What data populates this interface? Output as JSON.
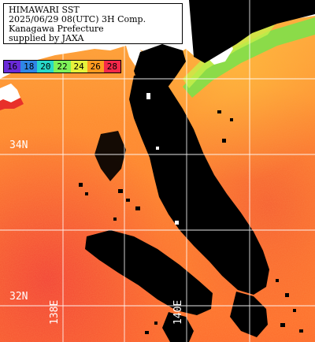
{
  "title": {
    "lines": [
      "HIMAWARI SST",
      "2025/06/29 08(UTC) 3H Comp.",
      "Kanagawa Prefecture",
      "supplied by JAXA"
    ]
  },
  "legend": {
    "items": [
      {
        "label": "16",
        "color": "#6a2bd9"
      },
      {
        "label": "18",
        "color": "#2f86e6"
      },
      {
        "label": "20",
        "color": "#27d9c8"
      },
      {
        "label": "22",
        "color": "#7ef25a"
      },
      {
        "label": "24",
        "color": "#e6f23b"
      },
      {
        "label": "26",
        "color": "#ff9a1f"
      },
      {
        "label": "28",
        "color": "#f5284a"
      }
    ]
  },
  "latitude_labels": [
    "34N",
    "32N"
  ],
  "longitude_labels": [
    "138E",
    "140E"
  ],
  "colors": {
    "land_and_cloud": "#000000",
    "ocean_warm_orange": "#ff8a2a",
    "ocean_hot_red": "#f24a32",
    "ocean_mild_yellow": "#ffc23a",
    "coastal_green": "#7ee04a",
    "land_white": "#ffffff",
    "grid": "#ffffff"
  }
}
